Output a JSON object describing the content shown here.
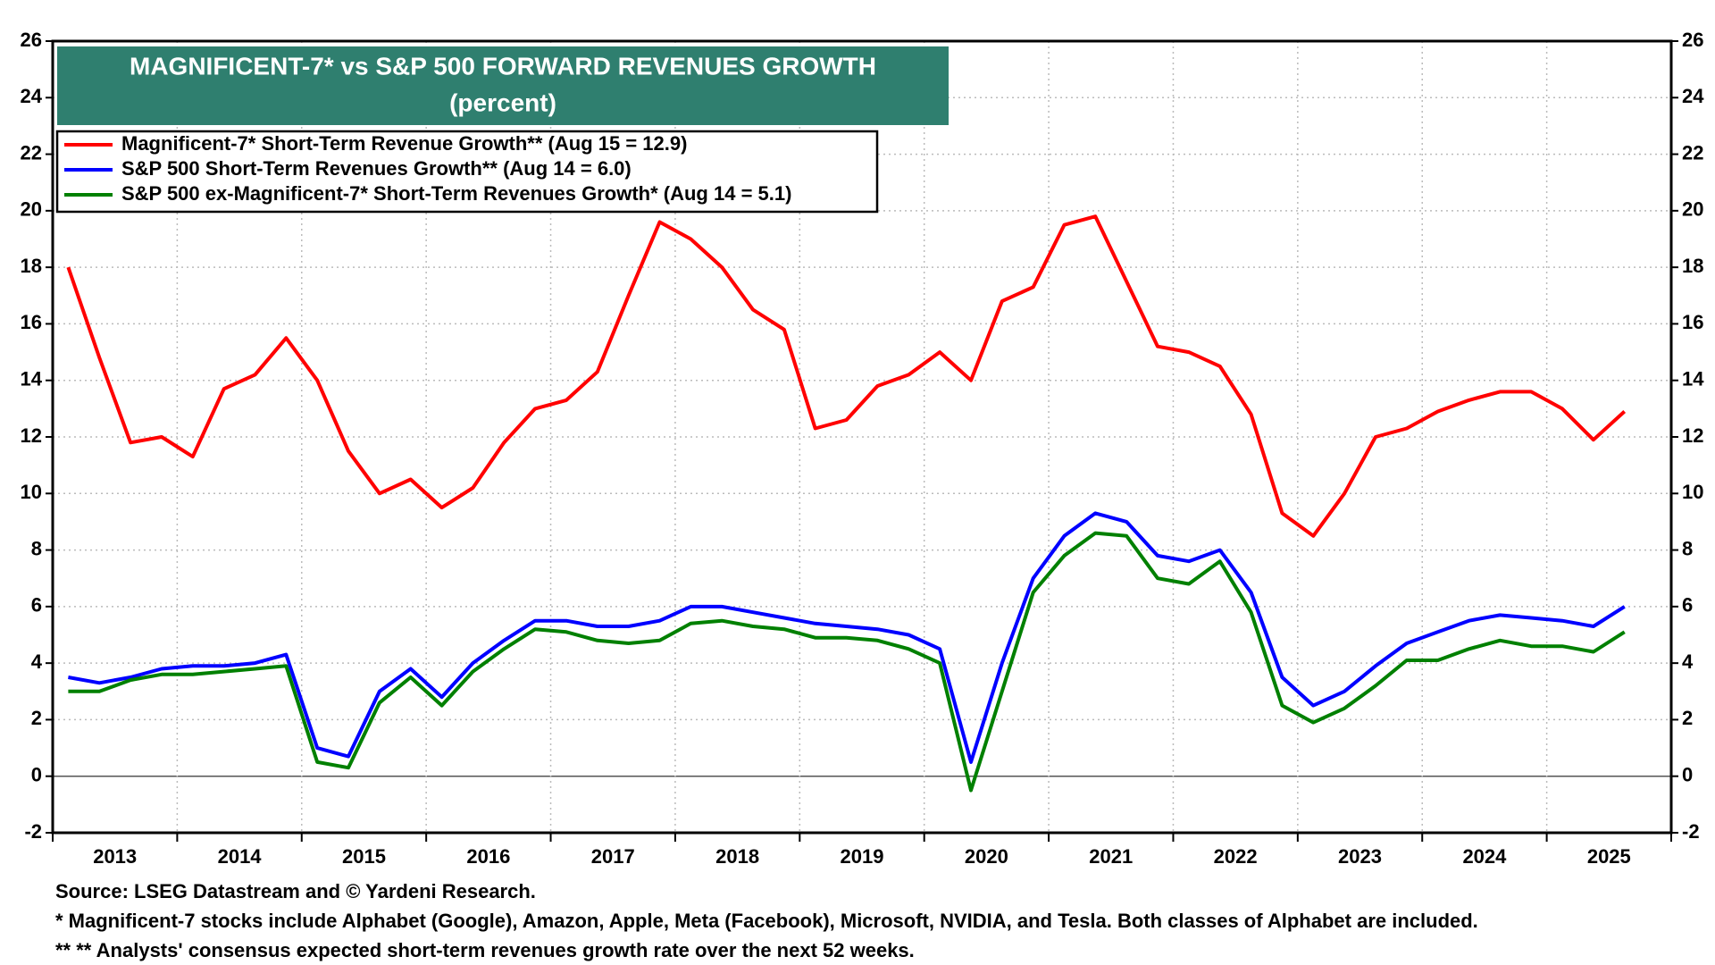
{
  "chart_data": {
    "type": "line",
    "title": "MAGNIFICENT-7* vs S&P 500 FORWARD REVENUES GROWTH",
    "subtitle": "(percent)",
    "categories": [
      null,
      null,
      "2013",
      null,
      null,
      null,
      "2014",
      null,
      null,
      null,
      "2015",
      null,
      null,
      null,
      "2016",
      null,
      null,
      null,
      "2017",
      null,
      null,
      null,
      "2018",
      null,
      null,
      null,
      "2019",
      null,
      null,
      null,
      "2020",
      null,
      null,
      null,
      "2021",
      null,
      null,
      null,
      "2022",
      null,
      null,
      null,
      "2023",
      null,
      null,
      null,
      "2024",
      null,
      null,
      null,
      "2025",
      null
    ],
    "series": [
      {
        "name": "Magnificent-7* Short-Term Revenue Growth** (Aug 15 = 12.9)",
        "color": "#ff0000",
        "values": [
          18,
          14.8,
          11.8,
          12.0,
          11.3,
          13.7,
          14.2,
          15.5,
          14.0,
          11.5,
          10.0,
          10.5,
          9.5,
          10.2,
          11.8,
          13.0,
          13.3,
          14.3,
          17.0,
          19.6,
          19.0,
          18.0,
          16.5,
          15.8,
          12.3,
          12.6,
          13.8,
          14.2,
          15.0,
          14.0,
          16.8,
          17.3,
          19.5,
          19.8,
          17.5,
          15.2,
          15.0,
          14.5,
          12.8,
          9.3,
          8.5,
          10.0,
          12.0,
          12.3,
          12.9,
          13.3,
          13.6,
          13.6,
          13.0,
          11.9,
          12.9,
          null
        ]
      },
      {
        "name": "S&P 500 Short-Term Revenues Growth** (Aug 14 = 6.0)",
        "color": "#0000ff",
        "values": [
          3.5,
          3.3,
          3.5,
          3.8,
          3.9,
          3.9,
          4.0,
          4.3,
          1.0,
          0.7,
          3.0,
          3.8,
          2.8,
          4.0,
          4.8,
          5.5,
          5.5,
          5.3,
          5.3,
          5.5,
          6.0,
          6.0,
          5.8,
          5.6,
          5.4,
          5.3,
          5.2,
          5.0,
          4.5,
          0.5,
          4.0,
          7.0,
          8.5,
          9.3,
          9.0,
          7.8,
          7.6,
          8.0,
          6.5,
          3.5,
          2.5,
          3.0,
          3.9,
          4.7,
          5.1,
          5.5,
          5.7,
          5.6,
          5.5,
          5.3,
          6.0,
          null
        ]
      },
      {
        "name": "S&P 500 ex-Magnificent-7* Short-Term Revenues Growth* (Aug 14 = 5.1)",
        "color": "#008000",
        "values": [
          3.0,
          3.0,
          3.4,
          3.6,
          3.6,
          3.7,
          3.8,
          3.9,
          0.5,
          0.3,
          2.6,
          3.5,
          2.5,
          3.7,
          4.5,
          5.2,
          5.1,
          4.8,
          4.7,
          4.8,
          5.4,
          5.5,
          5.3,
          5.2,
          4.9,
          4.9,
          4.8,
          4.5,
          4.0,
          -0.5,
          3.0,
          6.5,
          7.8,
          8.6,
          8.5,
          7.0,
          6.8,
          7.6,
          5.8,
          2.5,
          1.9,
          2.4,
          3.2,
          4.1,
          4.1,
          4.5,
          4.8,
          4.6,
          4.6,
          4.4,
          5.1,
          null
        ]
      }
    ],
    "ylim": [
      -2,
      26
    ],
    "yticks": [
      -2,
      0,
      2,
      4,
      6,
      8,
      10,
      12,
      14,
      16,
      18,
      20,
      22,
      24,
      26
    ],
    "grid": true,
    "notes": [
      "Source: LSEG Datastream and © Yardeni Research.",
      "* Magnificent-7 stocks include Alphabet (Google), Amazon, Apple, Meta (Facebook), Microsoft, NVIDIA, and Tesla. Both classes of Alphabet are included.",
      "** ** Analysts' consensus expected short-term revenues growth rate over the next 52 weeks."
    ]
  }
}
